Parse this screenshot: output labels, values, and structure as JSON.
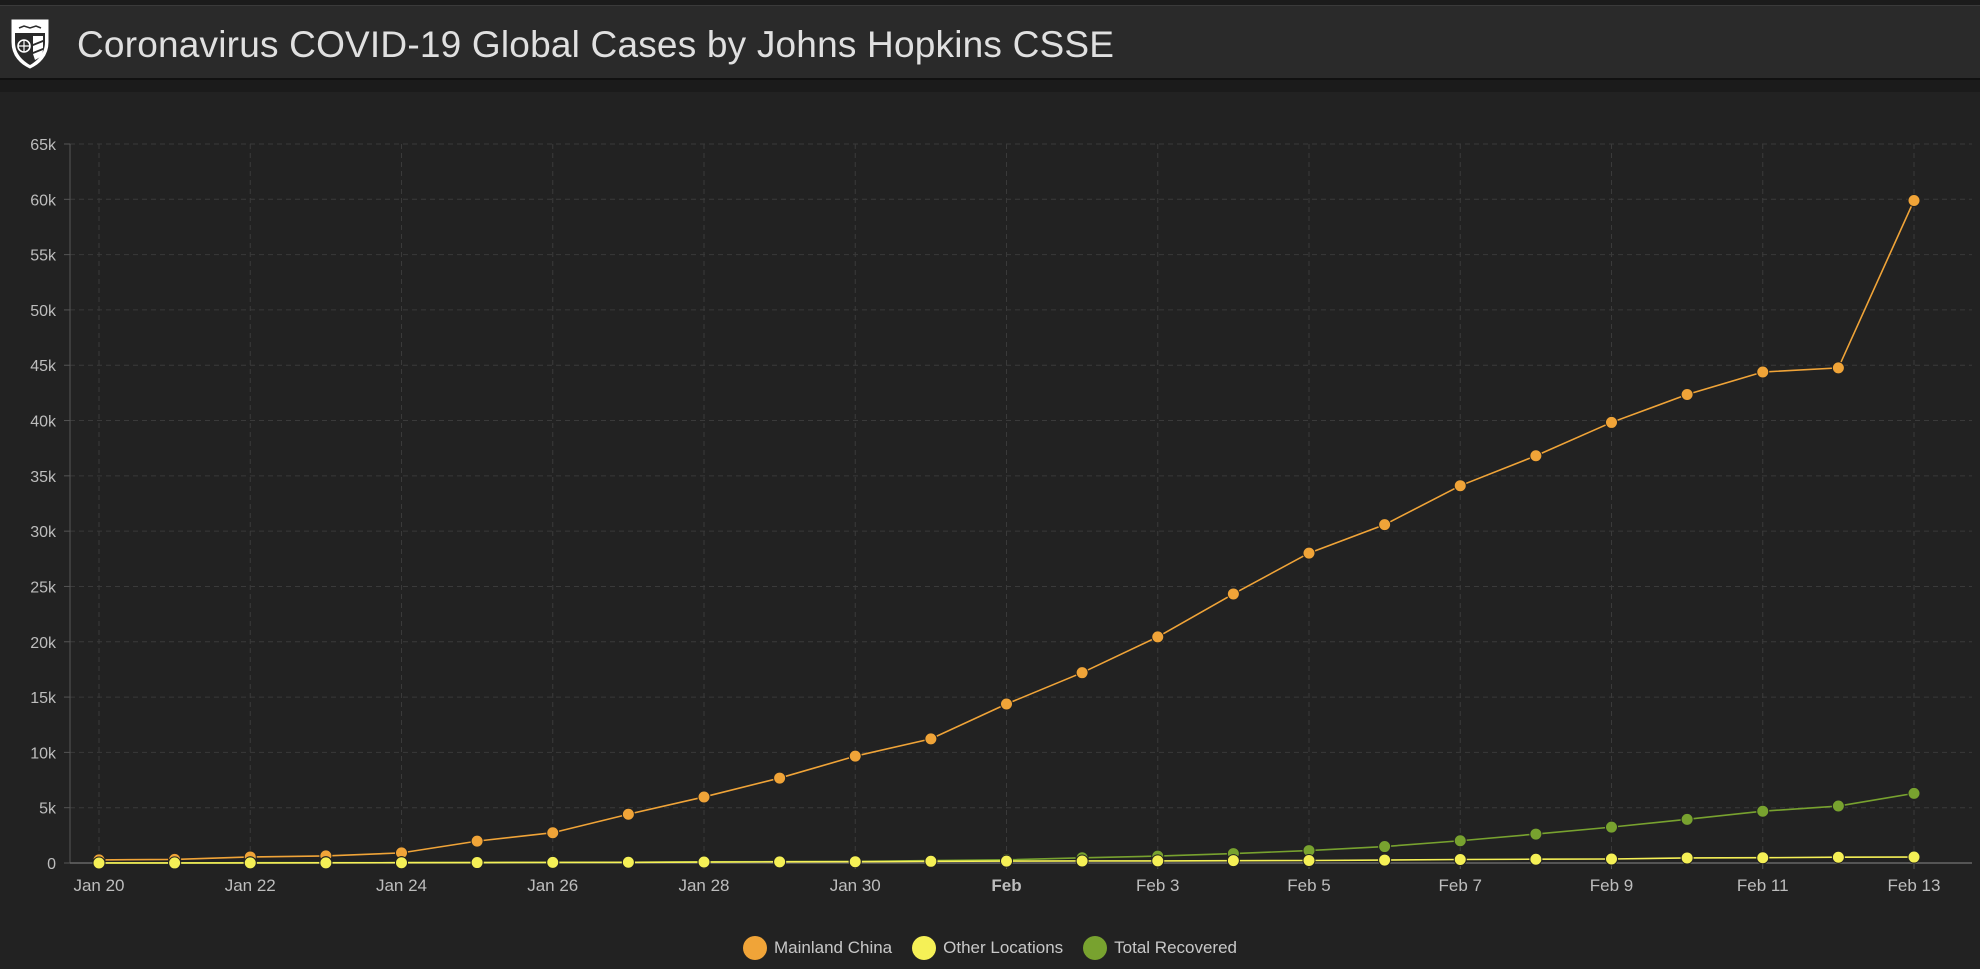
{
  "header": {
    "title": "Coronavirus COVID-19 Global Cases by Johns Hopkins CSSE",
    "logo_icon": "university-shield-icon"
  },
  "colors": {
    "background": "#222222",
    "grid": "#3a3a3a",
    "mainland_china": "#f0a438",
    "other_locations": "#f5f056",
    "total_recovered": "#78a22f"
  },
  "chart_data": {
    "type": "line",
    "title": "",
    "xlabel": "",
    "ylabel": "",
    "x": [
      "Jan 20",
      "Jan 21",
      "Jan 22",
      "Jan 23",
      "Jan 24",
      "Jan 25",
      "Jan 26",
      "Jan 27",
      "Jan 28",
      "Jan 29",
      "Jan 30",
      "Jan 31",
      "Feb 1",
      "Feb 2",
      "Feb 3",
      "Feb 4",
      "Feb 5",
      "Feb 6",
      "Feb 7",
      "Feb 8",
      "Feb 9",
      "Feb 10",
      "Feb 11",
      "Feb 12",
      "Feb 13"
    ],
    "x_tick_labels": [
      {
        "index": 0,
        "label": "Jan 20",
        "bold": false
      },
      {
        "index": 2,
        "label": "Jan 22",
        "bold": false
      },
      {
        "index": 4,
        "label": "Jan 24",
        "bold": false
      },
      {
        "index": 6,
        "label": "Jan 26",
        "bold": false
      },
      {
        "index": 8,
        "label": "Jan 28",
        "bold": false
      },
      {
        "index": 10,
        "label": "Jan 30",
        "bold": false
      },
      {
        "index": 12,
        "label": "Feb",
        "bold": true
      },
      {
        "index": 14,
        "label": "Feb 3",
        "bold": false
      },
      {
        "index": 16,
        "label": "Feb 5",
        "bold": false
      },
      {
        "index": 18,
        "label": "Feb 7",
        "bold": false
      },
      {
        "index": 20,
        "label": "Feb 9",
        "bold": false
      },
      {
        "index": 22,
        "label": "Feb 11",
        "bold": false
      },
      {
        "index": 24,
        "label": "Feb 13",
        "bold": false
      }
    ],
    "y_ticks": [
      0,
      5000,
      10000,
      15000,
      20000,
      25000,
      30000,
      35000,
      40000,
      45000,
      50000,
      55000,
      60000,
      65000
    ],
    "y_tick_labels": [
      "0",
      "5k",
      "10k",
      "15k",
      "20k",
      "25k",
      "30k",
      "35k",
      "40k",
      "45k",
      "50k",
      "55k",
      "60k",
      "65k"
    ],
    "ylim": [
      0,
      65000
    ],
    "grid": true,
    "legend_position": "bottom-center",
    "series": [
      {
        "name": "Mainland China",
        "color": "#f0a438",
        "values": [
          278,
          326,
          547,
          639,
          916,
          1979,
          2737,
          4409,
          5970,
          7678,
          9658,
          11221,
          14375,
          17205,
          20440,
          24324,
          28018,
          30587,
          34110,
          36814,
          39829,
          42354,
          44386,
          44759,
          59895
        ]
      },
      {
        "name": "Other Locations",
        "color": "#f5f056",
        "values": [
          4,
          6,
          8,
          14,
          25,
          40,
          57,
          64,
          87,
          105,
          118,
          153,
          173,
          183,
          188,
          212,
          227,
          265,
          317,
          343,
          361,
          457,
          476,
          523,
          538
        ]
      },
      {
        "name": "Total Recovered",
        "color": "#78a22f",
        "values": [
          0,
          0,
          28,
          30,
          36,
          39,
          52,
          61,
          107,
          126,
          143,
          222,
          284,
          472,
          623,
          852,
          1124,
          1487,
          2011,
          2616,
          3244,
          3946,
          4683,
          5150,
          6295
        ]
      }
    ]
  }
}
